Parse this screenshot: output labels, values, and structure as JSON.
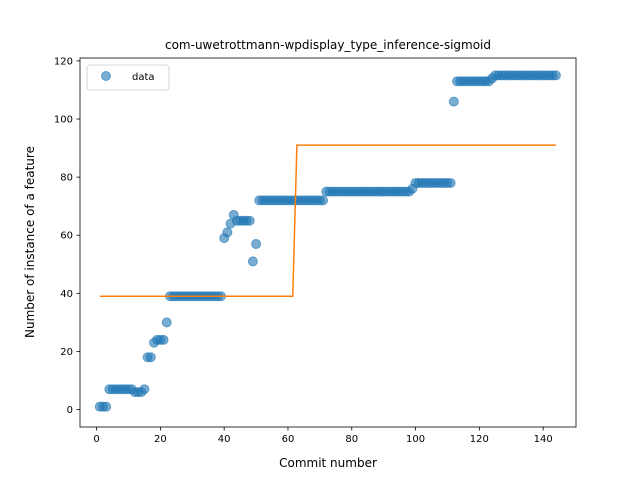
{
  "chart_data": {
    "type": "scatter",
    "title": "com-uwetrottmann-wpdisplay_type_inference-sigmoid",
    "xlabel": "Commit number",
    "ylabel": "Number of instance of a feature",
    "xlim": [
      -5.2,
      150.3
    ],
    "ylim": [
      -6,
      121
    ],
    "xticks": [
      0,
      20,
      40,
      60,
      80,
      100,
      120,
      140
    ],
    "yticks": [
      0,
      20,
      40,
      60,
      80,
      100,
      120
    ],
    "grid": false,
    "legend": {
      "position": "top-left",
      "entries": [
        "data"
      ]
    },
    "colors": {
      "data": "#1f77b4",
      "fit": "#ff7f0e"
    },
    "series": [
      {
        "name": "data",
        "kind": "scatter",
        "points": [
          [
            1,
            1
          ],
          [
            2,
            1
          ],
          [
            3,
            1
          ],
          [
            4,
            7
          ],
          [
            5,
            7
          ],
          [
            6,
            7
          ],
          [
            7,
            7
          ],
          [
            8,
            7
          ],
          [
            9,
            7
          ],
          [
            10,
            7
          ],
          [
            11,
            7
          ],
          [
            12,
            6
          ],
          [
            13,
            6
          ],
          [
            14,
            6
          ],
          [
            15,
            7
          ],
          [
            16,
            18
          ],
          [
            17,
            18
          ],
          [
            18,
            23
          ],
          [
            19,
            24
          ],
          [
            20,
            24
          ],
          [
            21,
            24
          ],
          [
            22,
            30
          ],
          [
            23,
            39
          ],
          [
            24,
            39
          ],
          [
            25,
            39
          ],
          [
            26,
            39
          ],
          [
            27,
            39
          ],
          [
            28,
            39
          ],
          [
            29,
            39
          ],
          [
            30,
            39
          ],
          [
            31,
            39
          ],
          [
            32,
            39
          ],
          [
            33,
            39
          ],
          [
            34,
            39
          ],
          [
            35,
            39
          ],
          [
            36,
            39
          ],
          [
            37,
            39
          ],
          [
            38,
            39
          ],
          [
            39,
            39
          ],
          [
            40,
            59
          ],
          [
            41,
            61
          ],
          [
            42,
            64
          ],
          [
            43,
            67
          ],
          [
            44,
            65
          ],
          [
            45,
            65
          ],
          [
            46,
            65
          ],
          [
            47,
            65
          ],
          [
            48,
            65
          ],
          [
            49,
            51
          ],
          [
            50,
            57
          ],
          [
            51,
            72
          ],
          [
            52,
            72
          ],
          [
            53,
            72
          ],
          [
            54,
            72
          ],
          [
            55,
            72
          ],
          [
            56,
            72
          ],
          [
            57,
            72
          ],
          [
            58,
            72
          ],
          [
            59,
            72
          ],
          [
            60,
            72
          ],
          [
            61,
            72
          ],
          [
            62,
            72
          ],
          [
            63,
            72
          ],
          [
            64,
            72
          ],
          [
            65,
            72
          ],
          [
            66,
            72
          ],
          [
            67,
            72
          ],
          [
            68,
            72
          ],
          [
            69,
            72
          ],
          [
            70,
            72
          ],
          [
            71,
            72
          ],
          [
            72,
            75
          ],
          [
            73,
            75
          ],
          [
            74,
            75
          ],
          [
            75,
            75
          ],
          [
            76,
            75
          ],
          [
            77,
            75
          ],
          [
            78,
            75
          ],
          [
            79,
            75
          ],
          [
            80,
            75
          ],
          [
            81,
            75
          ],
          [
            82,
            75
          ],
          [
            83,
            75
          ],
          [
            84,
            75
          ],
          [
            85,
            75
          ],
          [
            86,
            75
          ],
          [
            87,
            75
          ],
          [
            88,
            75
          ],
          [
            89,
            75
          ],
          [
            90,
            75
          ],
          [
            91,
            75
          ],
          [
            92,
            75
          ],
          [
            93,
            75
          ],
          [
            94,
            75
          ],
          [
            95,
            75
          ],
          [
            96,
            75
          ],
          [
            97,
            75
          ],
          [
            98,
            75
          ],
          [
            99,
            76
          ],
          [
            100,
            78
          ],
          [
            101,
            78
          ],
          [
            102,
            78
          ],
          [
            103,
            78
          ],
          [
            104,
            78
          ],
          [
            105,
            78
          ],
          [
            106,
            78
          ],
          [
            107,
            78
          ],
          [
            108,
            78
          ],
          [
            109,
            78
          ],
          [
            110,
            78
          ],
          [
            111,
            78
          ],
          [
            112,
            106
          ],
          [
            113,
            113
          ],
          [
            114,
            113
          ],
          [
            115,
            113
          ],
          [
            116,
            113
          ],
          [
            117,
            113
          ],
          [
            118,
            113
          ],
          [
            119,
            113
          ],
          [
            120,
            113
          ],
          [
            121,
            113
          ],
          [
            122,
            113
          ],
          [
            123,
            113
          ],
          [
            124,
            114
          ],
          [
            125,
            115
          ],
          [
            126,
            115
          ],
          [
            127,
            115
          ],
          [
            128,
            115
          ],
          [
            129,
            115
          ],
          [
            130,
            115
          ],
          [
            131,
            115
          ],
          [
            132,
            115
          ],
          [
            133,
            115
          ],
          [
            134,
            115
          ],
          [
            135,
            115
          ],
          [
            136,
            115
          ],
          [
            137,
            115
          ],
          [
            138,
            115
          ],
          [
            139,
            115
          ],
          [
            140,
            115
          ],
          [
            141,
            115
          ],
          [
            142,
            115
          ],
          [
            143,
            115
          ],
          [
            144,
            115
          ]
        ]
      },
      {
        "kind": "line",
        "points": [
          [
            1,
            39
          ],
          [
            61.5,
            39
          ],
          [
            62.8,
            91
          ],
          [
            144,
            91
          ]
        ]
      }
    ]
  }
}
